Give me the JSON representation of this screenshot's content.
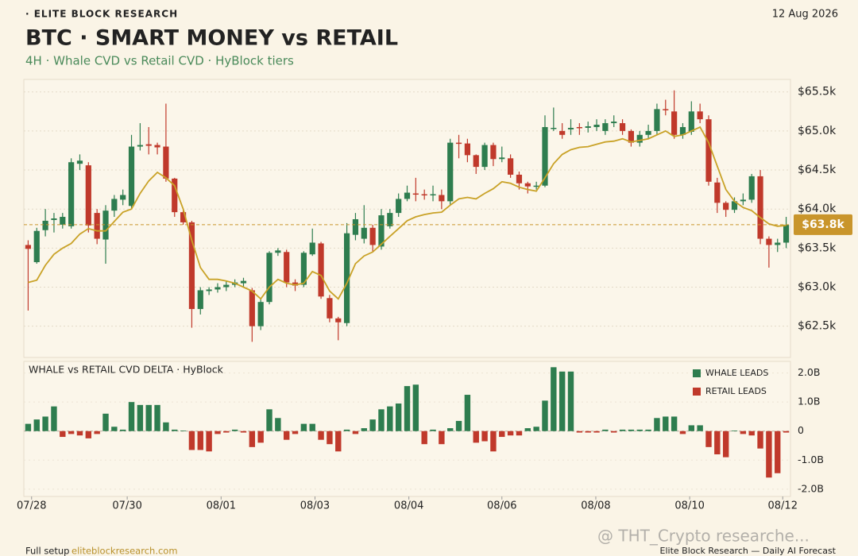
{
  "header": {
    "brand": "· ELITE BLOCK RESEARCH",
    "date": "12 Aug 2026"
  },
  "footer": {
    "lead": "Full setup",
    "link": "eliteblockresearch.com",
    "credit": "Elite Block Research — Daily AI Forecast",
    "watermark": "@ THT_Crypto researche..."
  },
  "chart_data": [
    {
      "type": "candlestick",
      "title": "BTC · SMART MONEY vs RETAIL",
      "subtitle": "4H · Whale CVD vs Retail CVD · HyBlock tiers",
      "up_color": "#2e7d4f",
      "down_color": "#c0392b",
      "open": [
        63540,
        63320,
        63730,
        63860,
        63800,
        63780,
        64580,
        64560,
        63950,
        63610,
        63980,
        64120,
        64040,
        64800,
        64830,
        64820,
        64800,
        64390,
        63960,
        63830,
        62720,
        62950,
        62970,
        63000,
        63030,
        63050,
        62960,
        62500,
        62810,
        63440,
        63450,
        63060,
        63030,
        63420,
        63560,
        62860,
        62600,
        62540,
        63670,
        63620,
        63760,
        63520,
        63780,
        63950,
        64130,
        64200,
        64190,
        64180,
        64180,
        64100,
        64850,
        64840,
        64690,
        64540,
        64820,
        64640,
        64650,
        64440,
        64330,
        64290,
        64300,
        65030,
        65000,
        65020,
        65050,
        65040,
        65050,
        65000,
        65100,
        65100,
        65000,
        64850,
        64950,
        65000,
        65280,
        65250,
        64950,
        64990,
        65250,
        65150,
        64340,
        64080,
        63990,
        64100,
        64120,
        64420,
        63620,
        63540,
        63570
      ],
      "high": [
        63600,
        63760,
        64000,
        63950,
        63950,
        64650,
        64700,
        64600,
        64000,
        64050,
        64180,
        64250,
        64950,
        65100,
        65050,
        64850,
        65350,
        64400,
        63980,
        63850,
        63000,
        63000,
        63050,
        63080,
        63100,
        63120,
        62990,
        62850,
        63460,
        63500,
        63480,
        63100,
        63460,
        63750,
        63580,
        62900,
        62620,
        63820,
        63950,
        64050,
        63800,
        64000,
        64000,
        64200,
        64300,
        64400,
        64250,
        64300,
        64250,
        64900,
        64950,
        64900,
        64700,
        64850,
        64850,
        64800,
        64700,
        64480,
        64350,
        64350,
        65200,
        65300,
        65100,
        65150,
        65100,
        65120,
        65150,
        65150,
        65200,
        65150,
        65020,
        65000,
        65080,
        65350,
        65400,
        65520,
        65100,
        65380,
        65350,
        65200,
        64400,
        64100,
        64150,
        64200,
        64450,
        64500,
        63650,
        63620,
        63900
      ],
      "low": [
        62700,
        63300,
        63650,
        63700,
        63750,
        63750,
        64500,
        63700,
        63550,
        63300,
        63900,
        64050,
        64000,
        64750,
        64700,
        64700,
        64350,
        63900,
        63800,
        62480,
        62650,
        62900,
        62930,
        62950,
        63000,
        63000,
        62300,
        62450,
        62780,
        63400,
        63000,
        62950,
        63000,
        63400,
        62850,
        62550,
        62320,
        62500,
        63600,
        63560,
        63450,
        63480,
        63750,
        63900,
        64100,
        64100,
        64120,
        64100,
        64000,
        64050,
        64650,
        64600,
        64450,
        64500,
        64550,
        64600,
        64400,
        64250,
        64200,
        64250,
        64280,
        65000,
        64900,
        64950,
        64950,
        64980,
        65000,
        64950,
        65050,
        64950,
        64800,
        64800,
        64900,
        64950,
        65200,
        64900,
        64900,
        64950,
        65100,
        64300,
        63950,
        63900,
        63950,
        64050,
        64080,
        63550,
        63250,
        63450,
        63500
      ],
      "close": [
        63490,
        63720,
        63850,
        63880,
        63900,
        64600,
        64620,
        63790,
        63620,
        63980,
        64130,
        64180,
        64800,
        64820,
        64810,
        64790,
        64390,
        63960,
        63830,
        62720,
        62960,
        62970,
        63000,
        63030,
        63060,
        63080,
        62500,
        62810,
        63440,
        63470,
        63060,
        63020,
        63440,
        63570,
        62880,
        62600,
        62550,
        63690,
        63870,
        63760,
        63540,
        63920,
        63950,
        64130,
        64210,
        64190,
        64180,
        64190,
        64100,
        64850,
        64840,
        64690,
        64540,
        64820,
        64640,
        64660,
        64440,
        64330,
        64290,
        64300,
        65050,
        65040,
        64950,
        65040,
        65040,
        65060,
        65080,
        65100,
        65120,
        65000,
        64850,
        64950,
        65000,
        65280,
        65270,
        64950,
        65050,
        65250,
        65150,
        64350,
        64080,
        63990,
        64100,
        64120,
        64420,
        63620,
        63540,
        63570,
        63800
      ],
      "ma": {
        "color": "#c9a227",
        "values": [
          63060,
          63090,
          63280,
          63420,
          63500,
          63560,
          63680,
          63750,
          63720,
          63720,
          63840,
          63960,
          64000,
          64200,
          64360,
          64470,
          64400,
          64300,
          64000,
          63600,
          63250,
          63100,
          63100,
          63080,
          63050,
          63000,
          62950,
          62850,
          63000,
          63100,
          63050,
          63030,
          63050,
          63200,
          63150,
          62950,
          62850,
          63050,
          63300,
          63400,
          63450,
          63550,
          63650,
          63750,
          63850,
          63900,
          63930,
          63950,
          63960,
          64050,
          64130,
          64150,
          64130,
          64200,
          64260,
          64350,
          64330,
          64280,
          64250,
          64230,
          64400,
          64580,
          64700,
          64760,
          64790,
          64800,
          64830,
          64860,
          64870,
          64900,
          64860,
          64880,
          64900,
          64950,
          65000,
          64930,
          64950,
          65000,
          65050,
          64850,
          64550,
          64250,
          64100,
          64020,
          63980,
          63890,
          63810,
          63780,
          63790
        ]
      },
      "last_price": {
        "value": 63800,
        "label": "$63.8k",
        "color": "#c9952b"
      },
      "xlim": [
        -0.5,
        88.5
      ],
      "ylim": [
        62100,
        65660
      ],
      "yticks": [
        {
          "value": 62500,
          "label": "$62.5k"
        },
        {
          "value": 63000,
          "label": "$63.0k"
        },
        {
          "value": 63500,
          "label": "$63.5k"
        },
        {
          "value": 64000,
          "label": "$64.0k"
        },
        {
          "value": 64500,
          "label": "$64.5k"
        },
        {
          "value": 65000,
          "label": "$65.0k"
        },
        {
          "value": 65500,
          "label": "$65.5k"
        }
      ],
      "grid": true
    },
    {
      "type": "bar",
      "title": "WHALE vs RETAIL CVD DELTA · HyBlock",
      "legend": [
        {
          "name": "WHALE LEADS",
          "color": "#2e7d4f"
        },
        {
          "name": "RETAIL LEADS",
          "color": "#c0392b"
        }
      ],
      "values": [
        0.25,
        0.4,
        0.5,
        0.85,
        -0.2,
        -0.1,
        -0.15,
        -0.25,
        -0.1,
        0.6,
        0.15,
        0.05,
        1.0,
        0.9,
        0.9,
        0.9,
        0.3,
        0.05,
        0.02,
        -0.65,
        -0.65,
        -0.7,
        -0.1,
        -0.05,
        0.05,
        -0.05,
        -0.55,
        -0.4,
        0.75,
        0.45,
        -0.3,
        -0.1,
        0.25,
        0.25,
        -0.3,
        -0.45,
        -0.7,
        0.05,
        -0.1,
        0.1,
        0.4,
        0.75,
        0.85,
        0.95,
        1.55,
        1.6,
        -0.45,
        0.05,
        -0.45,
        0.1,
        0.35,
        1.25,
        -0.4,
        -0.35,
        -0.7,
        -0.2,
        -0.15,
        -0.15,
        0.1,
        0.15,
        1.05,
        2.2,
        2.05,
        2.05,
        -0.05,
        -0.05,
        -0.05,
        0.05,
        -0.05,
        0.05,
        0.05,
        0.05,
        0.05,
        0.45,
        0.5,
        0.5,
        -0.1,
        0.2,
        0.2,
        -0.55,
        -0.8,
        -0.9,
        0.02,
        -0.1,
        -0.15,
        -0.6,
        -1.6,
        -1.45,
        -0.05
      ],
      "xlim": [
        -0.5,
        88.5
      ],
      "ylim": [
        -2.25,
        2.4
      ],
      "yticks": [
        {
          "value": -2,
          "label": "-2.0B"
        },
        {
          "value": -1,
          "label": "-1.0B"
        },
        0,
        {
          "value": 1,
          "label": "1.0B"
        },
        {
          "value": 2,
          "label": "2.0B"
        }
      ],
      "xticks": [
        {
          "value": 0.4,
          "label": "07/28"
        },
        {
          "value": 11.5,
          "label": "07/30"
        },
        {
          "value": 22.4,
          "label": "08/01"
        },
        {
          "value": 33.3,
          "label": "08/03"
        },
        {
          "value": 44.2,
          "label": "08/04"
        },
        {
          "value": 55,
          "label": "08/06"
        },
        {
          "value": 65.9,
          "label": "08/08"
        },
        {
          "value": 76.8,
          "label": "08/10"
        },
        {
          "value": 87.6,
          "label": "08/12"
        }
      ]
    }
  ]
}
